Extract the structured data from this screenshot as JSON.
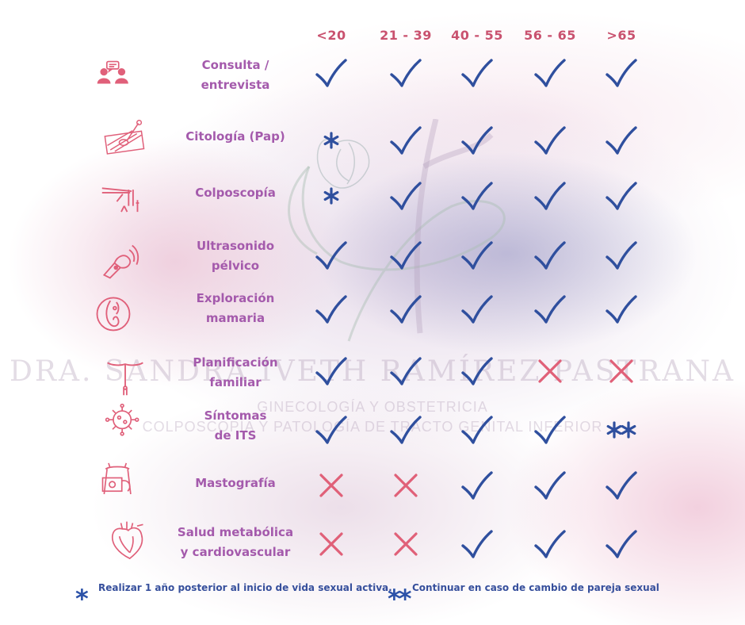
{
  "columns": [
    "<20",
    "21 - 39",
    "40 - 55",
    "56 - 65",
    ">65"
  ],
  "rows": [
    {
      "label_line1": "Consulta /",
      "label_line2": "entrevista",
      "icon": "consultation-icon",
      "marks": [
        "check",
        "check",
        "check",
        "check",
        "check"
      ]
    },
    {
      "label_line1": "Citología (Pap)",
      "label_line2": "",
      "icon": "pap-smear-icon",
      "marks": [
        "star",
        "check",
        "check",
        "check",
        "check"
      ]
    },
    {
      "label_line1": "Colposcopía",
      "label_line2": "",
      "icon": "speculum-icon",
      "marks": [
        "star",
        "check",
        "check",
        "check",
        "check"
      ]
    },
    {
      "label_line1": "Ultrasonido",
      "label_line2": "pélvico",
      "icon": "ultrasound-probe-icon",
      "marks": [
        "check",
        "check",
        "check",
        "check",
        "check"
      ]
    },
    {
      "label_line1": "Exploración",
      "label_line2": "mamaria",
      "icon": "breast-exam-icon",
      "marks": [
        "check",
        "check",
        "check",
        "check",
        "check"
      ]
    },
    {
      "label_line1": "Planificación",
      "label_line2": "familiar",
      "icon": "iud-icon",
      "marks": [
        "check",
        "check",
        "check",
        "cross",
        "cross"
      ]
    },
    {
      "label_line1": "Síntomas",
      "label_line2": "de ITS",
      "icon": "virus-icon",
      "marks": [
        "check",
        "check",
        "check",
        "check",
        "double-star"
      ]
    },
    {
      "label_line1": "Mastografía",
      "label_line2": "",
      "icon": "mammography-icon",
      "marks": [
        "cross",
        "cross",
        "check",
        "check",
        "check"
      ]
    },
    {
      "label_line1": "Salud metabólica",
      "label_line2": "y cardiovascular",
      "icon": "heart-icon",
      "marks": [
        "cross",
        "cross",
        "check",
        "check",
        "check"
      ]
    }
  ],
  "footnotes": {
    "star_symbol": "*",
    "star_text": "Realizar 1 año posterior al inicio de vida sexual activa.",
    "double_star_symbol": "**",
    "double_star_text": "Continuar en caso de cambio de pareja sexual"
  },
  "watermark": {
    "name": "DRA. SANDRA IVETH RAMÍREZ PASTRANA",
    "subtitle1": "GINECOLOGÍA Y OBSTETRICIA",
    "subtitle2": "COLPOSCOPÍA Y PATOLOGÍA DE TRACTO GENITAL INFERIOR"
  },
  "colors": {
    "check": "#2f4f9e",
    "cross": "#e06078",
    "label": "#a45aac",
    "header": "#c9526f",
    "icon": "#e0607a"
  }
}
